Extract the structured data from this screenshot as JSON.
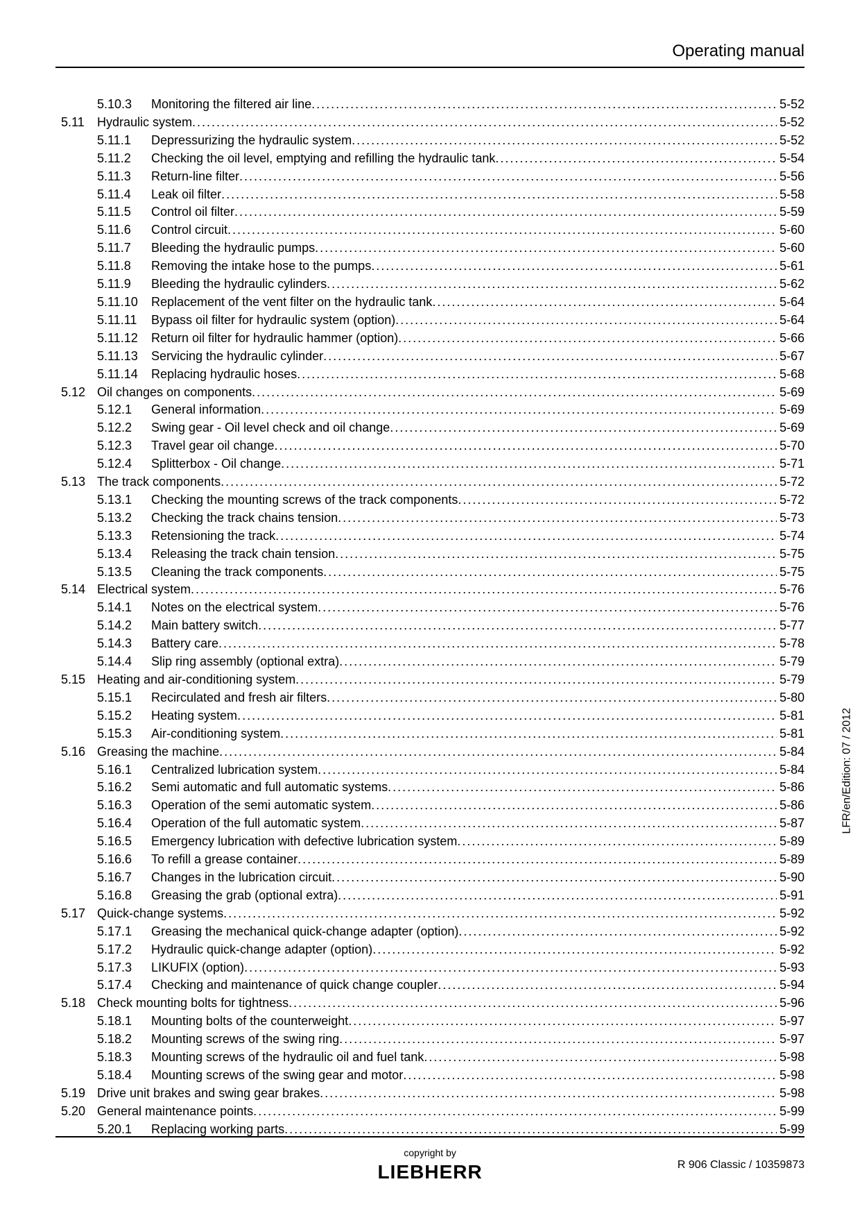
{
  "header_title": "Operating manual",
  "side_text": "LFR/en/Edition: 07 / 2012",
  "copyright_label": "copyright by",
  "logo_text": "LIEBHERR",
  "doc_id": "R 906 Classic / 10359873",
  "toc": [
    {
      "lvl": 2,
      "num": "5.10.3",
      "title": "Monitoring the filtered air line",
      "page": "5-52"
    },
    {
      "lvl": 1,
      "num": "5.11",
      "title": "Hydraulic system",
      "page": "5-52"
    },
    {
      "lvl": 2,
      "num": "5.11.1",
      "title": "Depressurizing the hydraulic system",
      "page": "5-52"
    },
    {
      "lvl": 2,
      "num": "5.11.2",
      "title": "Checking the oil level, emptying and refilling the hydraulic tank",
      "page": "5-54"
    },
    {
      "lvl": 2,
      "num": "5.11.3",
      "title": "Return-line filter",
      "page": "5-56"
    },
    {
      "lvl": 2,
      "num": "5.11.4",
      "title": "Leak oil filter",
      "page": "5-58"
    },
    {
      "lvl": 2,
      "num": "5.11.5",
      "title": "Control oil filter",
      "page": "5-59"
    },
    {
      "lvl": 2,
      "num": "5.11.6",
      "title": "Control circuit",
      "page": "5-60"
    },
    {
      "lvl": 2,
      "num": "5.11.7",
      "title": "Bleeding the hydraulic pumps",
      "page": "5-60"
    },
    {
      "lvl": 2,
      "num": "5.11.8",
      "title": "Removing the intake hose to the pumps",
      "page": "5-61"
    },
    {
      "lvl": 2,
      "num": "5.11.9",
      "title": "Bleeding the hydraulic cylinders",
      "page": "5-62"
    },
    {
      "lvl": 2,
      "num": "5.11.10",
      "title": "Replacement of the vent filter on the hydraulic tank",
      "page": "5-64"
    },
    {
      "lvl": 2,
      "num": "5.11.11",
      "title": "Bypass oil filter for hydraulic system (option)",
      "page": "5-64"
    },
    {
      "lvl": 2,
      "num": "5.11.12",
      "title": "Return oil filter for hydraulic hammer (option)",
      "page": "5-66"
    },
    {
      "lvl": 2,
      "num": "5.11.13",
      "title": "Servicing the hydraulic cylinder",
      "page": "5-67"
    },
    {
      "lvl": 2,
      "num": "5.11.14",
      "title": "Replacing hydraulic hoses",
      "page": "5-68"
    },
    {
      "lvl": 1,
      "num": "5.12",
      "title": "Oil changes on components",
      "page": "5-69"
    },
    {
      "lvl": 2,
      "num": "5.12.1",
      "title": "General information",
      "page": "5-69"
    },
    {
      "lvl": 2,
      "num": "5.12.2",
      "title": "Swing gear - Oil level check and oil change",
      "page": "5-69"
    },
    {
      "lvl": 2,
      "num": "5.12.3",
      "title": "Travel gear oil change",
      "page": "5-70"
    },
    {
      "lvl": 2,
      "num": "5.12.4",
      "title": "Splitterbox - Oil change",
      "page": "5-71"
    },
    {
      "lvl": 1,
      "num": "5.13",
      "title": "The track components",
      "page": "5-72"
    },
    {
      "lvl": 2,
      "num": "5.13.1",
      "title": "Checking the mounting screws of the track components",
      "page": "5-72"
    },
    {
      "lvl": 2,
      "num": "5.13.2",
      "title": "Checking the track chains tension",
      "page": "5-73"
    },
    {
      "lvl": 2,
      "num": "5.13.3",
      "title": "Retensioning the track",
      "page": "5-74"
    },
    {
      "lvl": 2,
      "num": "5.13.4",
      "title": "Releasing the track chain tension",
      "page": "5-75"
    },
    {
      "lvl": 2,
      "num": "5.13.5",
      "title": "Cleaning the track components",
      "page": "5-75"
    },
    {
      "lvl": 1,
      "num": "5.14",
      "title": "Electrical system",
      "page": "5-76"
    },
    {
      "lvl": 2,
      "num": "5.14.1",
      "title": "Notes on the electrical system",
      "page": "5-76"
    },
    {
      "lvl": 2,
      "num": "5.14.2",
      "title": "Main battery switch",
      "page": "5-77"
    },
    {
      "lvl": 2,
      "num": "5.14.3",
      "title": "Battery care",
      "page": "5-78"
    },
    {
      "lvl": 2,
      "num": "5.14.4",
      "title": "Slip ring assembly (optional extra)",
      "page": "5-79"
    },
    {
      "lvl": 1,
      "num": "5.15",
      "title": "Heating and air-conditioning system",
      "page": "5-79"
    },
    {
      "lvl": 2,
      "num": "5.15.1",
      "title": "Recirculated and fresh air filters",
      "page": "5-80"
    },
    {
      "lvl": 2,
      "num": "5.15.2",
      "title": "Heating system",
      "page": "5-81"
    },
    {
      "lvl": 2,
      "num": "5.15.3",
      "title": "Air-conditioning system",
      "page": "5-81"
    },
    {
      "lvl": 1,
      "num": "5.16",
      "title": "Greasing the machine",
      "page": "5-84"
    },
    {
      "lvl": 2,
      "num": "5.16.1",
      "title": "Centralized lubrication system",
      "page": "5-84"
    },
    {
      "lvl": 2,
      "num": "5.16.2",
      "title": "Semi automatic and full automatic systems",
      "page": "5-86"
    },
    {
      "lvl": 2,
      "num": "5.16.3",
      "title": "Operation of the semi automatic system",
      "page": "5-86"
    },
    {
      "lvl": 2,
      "num": "5.16.4",
      "title": "Operation of the full automatic system",
      "page": "5-87"
    },
    {
      "lvl": 2,
      "num": "5.16.5",
      "title": "Emergency lubrication with defective lubrication system",
      "page": "5-89"
    },
    {
      "lvl": 2,
      "num": "5.16.6",
      "title": "To refill a grease container",
      "page": "5-89"
    },
    {
      "lvl": 2,
      "num": "5.16.7",
      "title": "Changes in the lubrication circuit",
      "page": "5-90"
    },
    {
      "lvl": 2,
      "num": "5.16.8",
      "title": "Greasing the grab (optional extra)",
      "page": "5-91"
    },
    {
      "lvl": 1,
      "num": "5.17",
      "title": "Quick-change systems",
      "page": "5-92"
    },
    {
      "lvl": 2,
      "num": "5.17.1",
      "title": "Greasing the mechanical quick-change adapter (option)",
      "page": "5-92"
    },
    {
      "lvl": 2,
      "num": "5.17.2",
      "title": "Hydraulic quick-change adapter (option)",
      "page": "5-92"
    },
    {
      "lvl": 2,
      "num": "5.17.3",
      "title": "LIKUFIX (option)",
      "page": "5-93"
    },
    {
      "lvl": 2,
      "num": "5.17.4",
      "title": "Checking and maintenance of quick change coupler",
      "page": "5-94"
    },
    {
      "lvl": 1,
      "num": "5.18",
      "title": "Check mounting bolts for tightness",
      "page": "5-96"
    },
    {
      "lvl": 2,
      "num": "5.18.1",
      "title": "Mounting bolts of the counterweight",
      "page": "5-97"
    },
    {
      "lvl": 2,
      "num": "5.18.2",
      "title": "Mounting screws of the swing ring",
      "page": "5-97"
    },
    {
      "lvl": 2,
      "num": "5.18.3",
      "title": "Mounting screws of the hydraulic oil and fuel tank",
      "page": "5-98"
    },
    {
      "lvl": 2,
      "num": "5.18.4",
      "title": "Mounting screws of the swing gear and motor",
      "page": "5-98"
    },
    {
      "lvl": 1,
      "num": "5.19",
      "title": "Drive unit brakes and swing gear brakes",
      "page": "5-98"
    },
    {
      "lvl": 1,
      "num": "5.20",
      "title": "General maintenance points",
      "page": "5-99"
    },
    {
      "lvl": 2,
      "num": "5.20.1",
      "title": "Replacing working parts",
      "page": "5-99"
    }
  ]
}
